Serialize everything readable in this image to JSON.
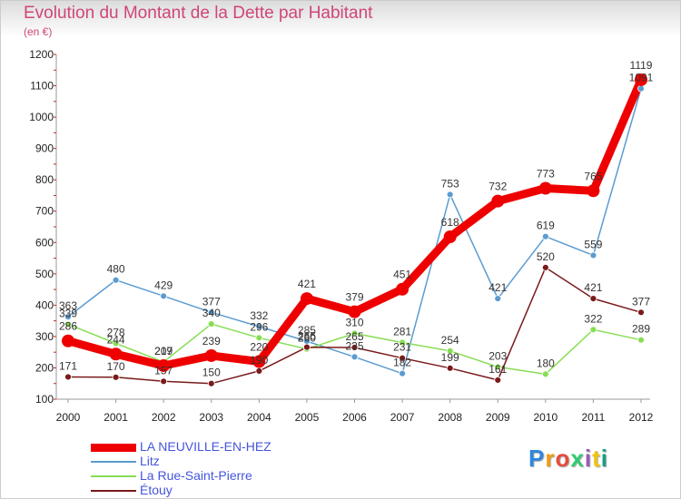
{
  "title": "Evolution du Montant de la Dette par Habitant",
  "unit": "(en €)",
  "logo": "Proxiti",
  "chart_data": {
    "type": "line",
    "title": "Evolution du Montant de la Dette par Habitant",
    "ylabel": "(en €)",
    "xlabel": "",
    "ylim": [
      100,
      1200
    ],
    "yticks": [
      100,
      200,
      300,
      400,
      500,
      600,
      700,
      800,
      900,
      1000,
      1100,
      1200
    ],
    "grid": false,
    "legend_position": "bottom-left",
    "categories": [
      "2000",
      "2001",
      "2002",
      "2003",
      "2004",
      "2005",
      "2006",
      "2007",
      "2008",
      "2009",
      "2010",
      "2011",
      "2012"
    ],
    "series": [
      {
        "name": "LA NEUVILLE-EN-HEZ",
        "color": "#ee0000",
        "values": [
          286,
          244,
          207,
          239,
          220,
          421,
          379,
          451,
          618,
          732,
          773,
          765,
          1119
        ]
      },
      {
        "name": "Litz",
        "color": "#5b9bd0",
        "values": [
          363,
          480,
          429,
          377,
          332,
          285,
          235,
          182,
          753,
          421,
          619,
          559,
          1091
        ]
      },
      {
        "name": "La Rue-Saint-Pierre",
        "color": "#88dd55",
        "values": [
          339,
          278,
          219,
          340,
          296,
          260,
          310,
          281,
          254,
          203,
          180,
          322,
          289
        ]
      },
      {
        "name": "Étouy",
        "color": "#7a1a1a",
        "values": [
          171,
          170,
          157,
          150,
          190,
          266,
          265,
          231,
          199,
          161,
          520,
          421,
          377
        ]
      }
    ]
  }
}
